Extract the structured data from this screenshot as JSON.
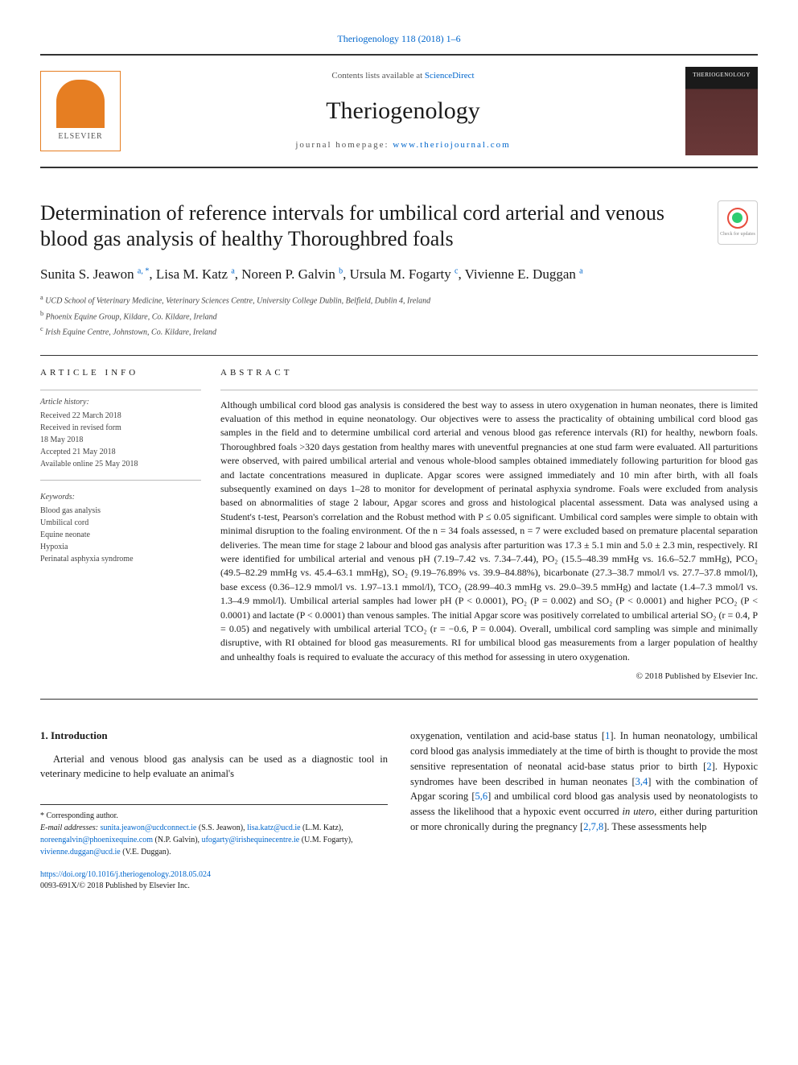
{
  "header": {
    "citation_link": "Theriogenology 118 (2018) 1–6",
    "contents_at": "Contents lists available at ",
    "sciencedirect": "ScienceDirect",
    "journal_name": "Theriogenology",
    "homepage_label": "journal homepage: ",
    "homepage_url": "www.theriojournal.com",
    "elsevier": "ELSEVIER",
    "cover_title": "THERIOGENOLOGY",
    "crossmark": "Check for updates"
  },
  "article": {
    "title": "Determination of reference intervals for umbilical cord arterial and venous blood gas analysis of healthy Thoroughbred foals",
    "authors_html": "Sunita S. Jeawon <sup>a, *</sup>, Lisa M. Katz <sup>a</sup>, Noreen P. Galvin <sup>b</sup>, Ursula M. Fogarty <sup>c</sup>, Vivienne E. Duggan <sup>a</sup>",
    "affiliations": [
      "a UCD School of Veterinary Medicine, Veterinary Sciences Centre, University College Dublin, Belfield, Dublin 4, Ireland",
      "b Phoenix Equine Group, Kildare, Co. Kildare, Ireland",
      "c Irish Equine Centre, Johnstown, Co. Kildare, Ireland"
    ]
  },
  "info": {
    "section_label": "ARTICLE INFO",
    "history_label": "Article history:",
    "history": [
      "Received 22 March 2018",
      "Received in revised form",
      "18 May 2018",
      "Accepted 21 May 2018",
      "Available online 25 May 2018"
    ],
    "keywords_label": "Keywords:",
    "keywords": [
      "Blood gas analysis",
      "Umbilical cord",
      "Equine neonate",
      "Hypoxia",
      "Perinatal asphyxia syndrome"
    ]
  },
  "abstract": {
    "label": "ABSTRACT",
    "text": "Although umbilical cord blood gas analysis is considered the best way to assess in utero oxygenation in human neonates, there is limited evaluation of this method in equine neonatology. Our objectives were to assess the practicality of obtaining umbilical cord blood gas samples in the field and to determine umbilical cord arterial and venous blood gas reference intervals (RI) for healthy, newborn foals. Thoroughbred foals >320 days gestation from healthy mares with uneventful pregnancies at one stud farm were evaluated. All parturitions were observed, with paired umbilical arterial and venous whole-blood samples obtained immediately following parturition for blood gas and lactate concentrations measured in duplicate. Apgar scores were assigned immediately and 10 min after birth, with all foals subsequently examined on days 1–28 to monitor for development of perinatal asphyxia syndrome. Foals were excluded from analysis based on abnormalities of stage 2 labour, Apgar scores and gross and histological placental assessment. Data was analysed using a Student's t-test, Pearson's correlation and the Robust method with P ≤ 0.05 significant. Umbilical cord samples were simple to obtain with minimal disruption to the foaling environment. Of the n = 34 foals assessed, n = 7 were excluded based on premature placental separation deliveries. The mean time for stage 2 labour and blood gas analysis after parturition was 17.3 ± 5.1 min and 5.0 ± 2.3 min, respectively. RI were identified for umbilical arterial and venous pH (7.19–7.42 vs. 7.34–7.44), PO₂ (15.5–48.39 mmHg vs. 16.6–52.7 mmHg), PCO₂ (49.5–82.29 mmHg vs. 45.4–63.1 mmHg), SO₂ (9.19–76.89% vs. 39.9–84.88%), bicarbonate (27.3–38.7 mmol/l vs. 27.7–37.8 mmol/l), base excess (0.36–12.9 mmol/l vs. 1.97–13.1 mmol/l), TCO₂ (28.99–40.3 mmHg vs. 29.0–39.5 mmHg) and lactate (1.4–7.3 mmol/l vs. 1.3–4.9 mmol/l). Umbilical arterial samples had lower pH (P < 0.0001), PO₂ (P = 0.002) and SO₂ (P < 0.0001) and higher PCO₂ (P < 0.0001) and lactate (P < 0.0001) than venous samples. The initial Apgar score was positively correlated to umbilical arterial SO₂ (r = 0.4, P = 0.05) and negatively with umbilical arterial TCO₂ (r = −0.6, P = 0.004). Overall, umbilical cord sampling was simple and minimally disruptive, with RI obtained for blood gas measurements. RI for umbilical blood gas measurements from a larger population of healthy and unhealthy foals is required to evaluate the accuracy of this method for assessing in utero oxygenation.",
    "copyright": "© 2018 Published by Elsevier Inc."
  },
  "body": {
    "section1_heading": "1. Introduction",
    "col1_p1": "Arterial and venous blood gas analysis can be used as a diagnostic tool in veterinary medicine to help evaluate an animal's",
    "col2_p1": "oxygenation, ventilation and acid-base status [1]. In human neonatology, umbilical cord blood gas analysis immediately at the time of birth is thought to provide the most sensitive representation of neonatal acid-base status prior to birth [2]. Hypoxic syndromes have been described in human neonates [3,4] with the combination of Apgar scoring [5,6] and umbilical cord blood gas analysis used by neonatologists to assess the likelihood that a hypoxic event occurred in utero, either during parturition or more chronically during the pregnancy [2,7,8]. These assessments help"
  },
  "footnotes": {
    "corr": "* Corresponding author.",
    "email_label": "E-mail addresses: ",
    "emails_html": "<a>sunita.jeawon@ucdconnect.ie</a> (S.S. Jeawon), <a>lisa.katz@ucd.ie</a> (L.M. Katz), <a>noreengalvin@phoenixequine.com</a> (N.P. Galvin), <a>ufogarty@irishequinecentre.ie</a> (U.M. Fogarty), <a>vivienne.duggan@ucd.ie</a> (V.E. Duggan)."
  },
  "footer": {
    "doi": "https://doi.org/10.1016/j.theriogenology.2018.05.024",
    "issn": "0093-691X/© 2018 Published by Elsevier Inc."
  },
  "colors": {
    "link": "#0066cc",
    "rule": "#333333",
    "elsevier": "#e67e22",
    "cover_dark": "#1a1a1a",
    "cover_red": "#5a3030"
  }
}
